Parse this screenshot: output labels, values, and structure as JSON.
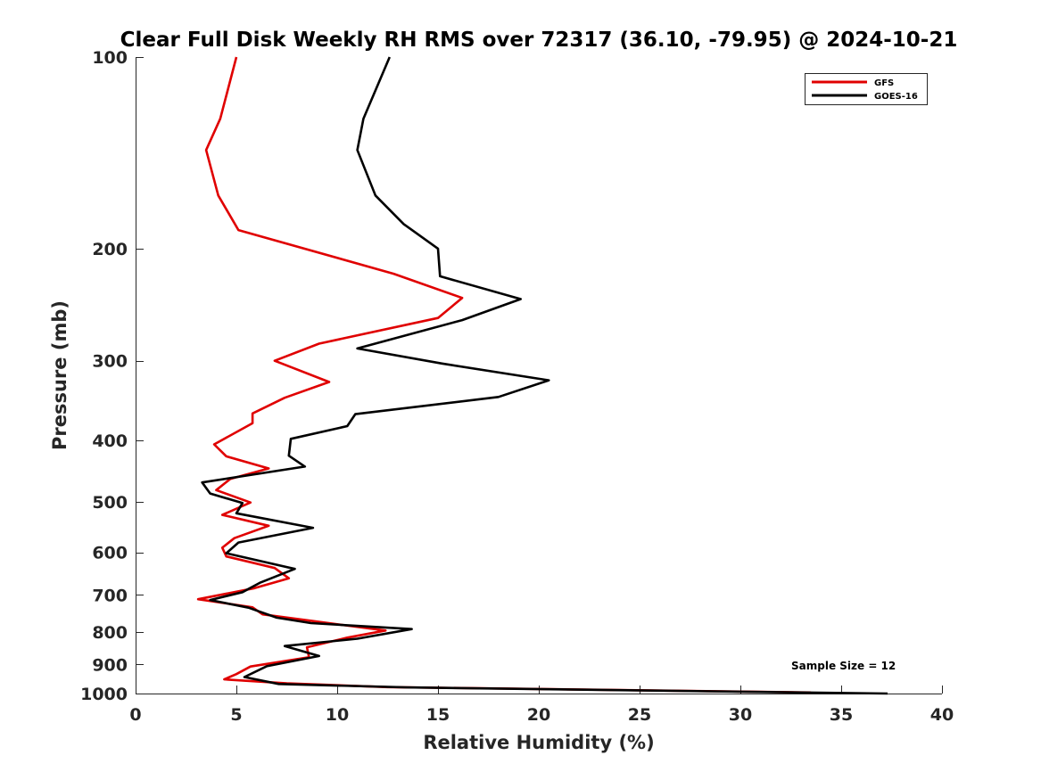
{
  "chart_data": {
    "type": "line",
    "title": "Clear Full Disk Weekly RH RMS over 72317 (36.10, -79.95) @ 2024-10-21",
    "xlabel": "Relative Humidity (%)",
    "ylabel": "Pressure (mb)",
    "xlim": [
      0,
      40
    ],
    "ylim": [
      100,
      1000
    ],
    "y_scale": "log",
    "y_reversed": true,
    "xticks": [
      0,
      5,
      10,
      15,
      20,
      25,
      30,
      35,
      40
    ],
    "yticks": [
      100,
      200,
      300,
      400,
      500,
      600,
      700,
      800,
      900,
      1000
    ],
    "legend_position": "top-right",
    "grid": false,
    "annotation": "Sample Size = 12",
    "series": [
      {
        "name": "GFS",
        "color": "#e00000",
        "points": [
          [
            5.0,
            100
          ],
          [
            4.2,
            125
          ],
          [
            3.5,
            140
          ],
          [
            4.1,
            165
          ],
          [
            5.1,
            187
          ],
          [
            12.8,
            219
          ],
          [
            16.2,
            239
          ],
          [
            15.0,
            257
          ],
          [
            9.1,
            282
          ],
          [
            6.9,
            300
          ],
          [
            9.6,
            324
          ],
          [
            7.4,
            343
          ],
          [
            5.8,
            363
          ],
          [
            5.8,
            376
          ],
          [
            3.9,
            406
          ],
          [
            4.5,
            424
          ],
          [
            6.6,
            443
          ],
          [
            4.7,
            460
          ],
          [
            4.0,
            479
          ],
          [
            5.7,
            501
          ],
          [
            4.3,
            524
          ],
          [
            6.6,
            545
          ],
          [
            4.9,
            570
          ],
          [
            4.3,
            590
          ],
          [
            4.5,
            609
          ],
          [
            6.9,
            635
          ],
          [
            7.6,
            659
          ],
          [
            5.9,
            683
          ],
          [
            3.1,
            711
          ],
          [
            5.8,
            732
          ],
          [
            6.3,
            751
          ],
          [
            9.3,
            773
          ],
          [
            12.4,
            796
          ],
          [
            10.5,
            817
          ],
          [
            8.5,
            846
          ],
          [
            8.6,
            877
          ],
          [
            5.7,
            907
          ],
          [
            5.0,
            932
          ],
          [
            4.4,
            950
          ],
          [
            7.5,
            964
          ],
          [
            12.5,
            977
          ],
          [
            33.5,
            996
          ]
        ]
      },
      {
        "name": "GOES-16",
        "color": "#000000",
        "points": [
          [
            12.6,
            100
          ],
          [
            11.3,
            125
          ],
          [
            11.0,
            140
          ],
          [
            11.9,
            165
          ],
          [
            13.3,
            183
          ],
          [
            15.0,
            200
          ],
          [
            15.1,
            221
          ],
          [
            19.1,
            240
          ],
          [
            16.2,
            259
          ],
          [
            11.0,
            287
          ],
          [
            15.2,
            303
          ],
          [
            20.5,
            322
          ],
          [
            18.0,
            342
          ],
          [
            10.9,
            364
          ],
          [
            10.5,
            380
          ],
          [
            7.7,
            398
          ],
          [
            7.6,
            423
          ],
          [
            8.4,
            440
          ],
          [
            3.3,
            466
          ],
          [
            3.7,
            485
          ],
          [
            5.3,
            502
          ],
          [
            5.0,
            521
          ],
          [
            8.8,
            549
          ],
          [
            5.1,
            579
          ],
          [
            4.5,
            602
          ],
          [
            7.9,
            637
          ],
          [
            6.2,
            669
          ],
          [
            5.3,
            693
          ],
          [
            3.7,
            713
          ],
          [
            5.6,
            733
          ],
          [
            7.0,
            760
          ],
          [
            8.7,
            775
          ],
          [
            13.7,
            792
          ],
          [
            11.0,
            820
          ],
          [
            7.4,
            842
          ],
          [
            9.1,
            873
          ],
          [
            6.5,
            906
          ],
          [
            5.4,
            942
          ],
          [
            7.1,
            966
          ],
          [
            13.4,
            978
          ],
          [
            37.3,
            1000
          ]
        ]
      }
    ]
  }
}
